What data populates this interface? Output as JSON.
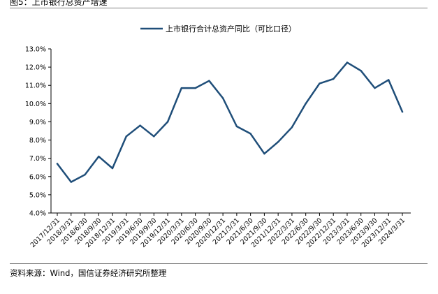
{
  "figure": {
    "title": "图5：上市银行总资产增速",
    "source": "资料来源：Wind，国信证券经济研究所整理"
  },
  "chart_data": {
    "type": "line",
    "title": "",
    "xlabel": "",
    "ylabel": "",
    "x": [
      "2017/12/31",
      "2018/3/31",
      "2018/6/30",
      "2018/9/30",
      "2018/12/31",
      "2019/3/31",
      "2019/6/30",
      "2019/9/30",
      "2019/12/31",
      "2020/3/31",
      "2020/6/30",
      "2020/9/30",
      "2020/12/31",
      "2021/3/31",
      "2021/6/30",
      "2021/9/30",
      "2021/12/31",
      "2022/3/31",
      "2022/6/30",
      "2022/9/30",
      "2022/12/31",
      "2023/3/31",
      "2023/6/30",
      "2023/9/30",
      "2023/12/31",
      "2024/3/31"
    ],
    "y_tick_labels": [
      "4.0%",
      "5.0%",
      "6.0%",
      "7.0%",
      "8.0%",
      "9.0%",
      "10.0%",
      "11.0%",
      "12.0%",
      "13.0%"
    ],
    "ylim": [
      4.0,
      13.0
    ],
    "y_tick_step": 1.0,
    "grid": false,
    "legend_position": "top-center",
    "series": [
      {
        "name": "上市银行合计总资产同比（可比口径）",
        "color": "#1f4e79",
        "values": [
          6.7,
          5.7,
          6.1,
          7.1,
          6.45,
          8.2,
          8.8,
          8.2,
          9.0,
          10.85,
          10.85,
          11.25,
          10.3,
          8.75,
          8.35,
          7.25,
          7.9,
          8.7,
          10.0,
          11.1,
          11.35,
          12.25,
          11.8,
          10.85,
          11.3,
          9.55
        ]
      }
    ]
  }
}
